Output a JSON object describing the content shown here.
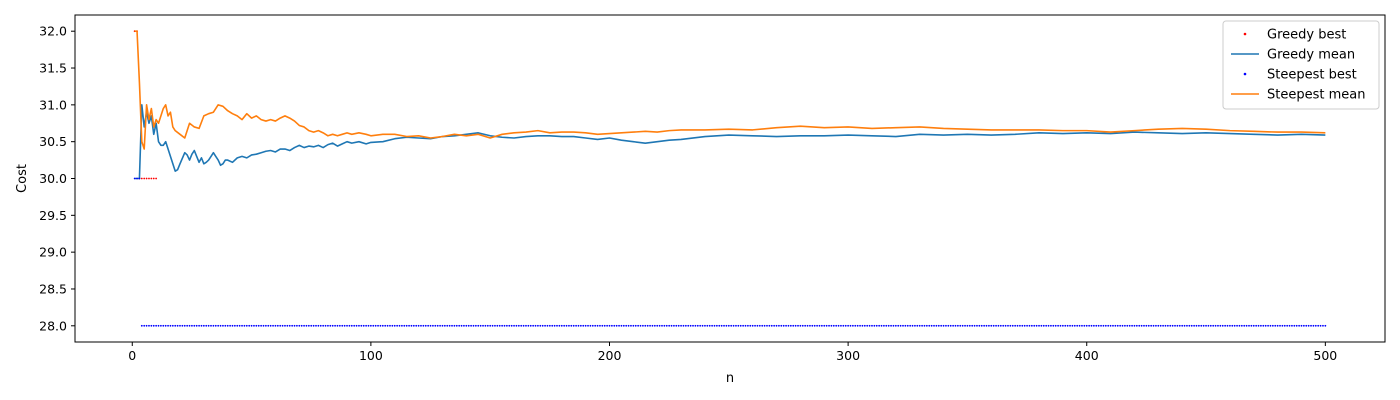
{
  "chart_data": {
    "type": "line",
    "title": "",
    "xlabel": "n",
    "ylabel": "Cost",
    "xlim": [
      -24,
      525
    ],
    "ylim": [
      27.78,
      32.22
    ],
    "xticks": [
      0,
      100,
      200,
      300,
      400,
      500
    ],
    "yticks": [
      28.0,
      28.5,
      29.0,
      29.5,
      30.0,
      30.5,
      31.0,
      31.5,
      32.0
    ],
    "ytick_labels": [
      "28.0",
      "28.5",
      "29.0",
      "29.5",
      "30.0",
      "30.5",
      "31.0",
      "31.5",
      "32.0"
    ],
    "legend_position": "top-right",
    "grid": false,
    "series": [
      {
        "name": "Greedy best",
        "style": "points",
        "color": "#ff0000",
        "x": [
          1,
          2,
          3,
          4,
          5,
          6,
          7,
          8,
          9,
          10
        ],
        "y": [
          32.0,
          32.0,
          30.0,
          30.0,
          30.0,
          30.0,
          30.0,
          30.0,
          30.0,
          30.0
        ]
      },
      {
        "name": "Greedy mean",
        "style": "line",
        "color": "#1f77b4",
        "x": [
          1,
          2,
          3,
          4,
          5,
          6,
          7,
          8,
          9,
          10,
          11,
          12,
          13,
          14,
          15,
          17,
          18,
          19,
          20,
          22,
          23,
          24,
          25,
          26,
          27,
          28,
          29,
          30,
          31,
          32,
          33,
          34,
          35,
          36,
          37,
          38,
          39,
          40,
          42,
          44,
          46,
          48,
          50,
          52,
          54,
          56,
          58,
          60,
          62,
          64,
          66,
          68,
          70,
          72,
          74,
          76,
          78,
          80,
          82,
          84,
          86,
          88,
          90,
          92,
          95,
          98,
          100,
          105,
          110,
          115,
          120,
          125,
          130,
          135,
          140,
          145,
          150,
          155,
          160,
          165,
          170,
          175,
          180,
          185,
          190,
          195,
          200,
          205,
          210,
          215,
          220,
          225,
          230,
          240,
          250,
          260,
          270,
          280,
          290,
          300,
          310,
          320,
          330,
          340,
          350,
          360,
          370,
          380,
          390,
          400,
          410,
          420,
          430,
          440,
          450,
          460,
          470,
          480,
          490,
          500
        ],
        "y": [
          30.0,
          30.0,
          30.0,
          31.0,
          30.7,
          30.9,
          30.75,
          30.85,
          30.6,
          30.75,
          30.5,
          30.45,
          30.45,
          30.5,
          30.4,
          30.2,
          30.1,
          30.12,
          30.2,
          30.35,
          30.32,
          30.25,
          30.33,
          30.38,
          30.3,
          30.22,
          30.28,
          30.2,
          30.22,
          30.25,
          30.3,
          30.35,
          30.3,
          30.25,
          30.18,
          30.2,
          30.25,
          30.25,
          30.22,
          30.28,
          30.3,
          30.28,
          30.32,
          30.33,
          30.35,
          30.37,
          30.38,
          30.36,
          30.4,
          30.4,
          30.38,
          30.42,
          30.45,
          30.42,
          30.44,
          30.43,
          30.45,
          30.42,
          30.46,
          30.48,
          30.44,
          30.47,
          30.5,
          30.48,
          30.5,
          30.47,
          30.49,
          30.5,
          30.54,
          30.56,
          30.55,
          30.54,
          30.57,
          30.58,
          30.6,
          30.62,
          30.58,
          30.56,
          30.55,
          30.57,
          30.58,
          30.58,
          30.57,
          30.57,
          30.55,
          30.53,
          30.55,
          30.52,
          30.5,
          30.48,
          30.5,
          30.52,
          30.53,
          30.57,
          30.59,
          30.58,
          30.57,
          30.58,
          30.58,
          30.59,
          30.58,
          30.57,
          30.6,
          30.59,
          30.6,
          30.59,
          30.6,
          30.62,
          30.61,
          30.62,
          30.61,
          30.63,
          30.62,
          30.61,
          30.62,
          30.61,
          30.6,
          30.59,
          30.6,
          30.59
        ]
      },
      {
        "name": "Steepest best",
        "style": "points",
        "color": "#0000ff",
        "x_range": [
          1,
          500
        ],
        "y_values_by_x": [
          {
            "x_from": 1,
            "x_to": 3,
            "y": 30.0
          },
          {
            "x_from": 4,
            "x_to": 500,
            "y": 28.0
          }
        ]
      },
      {
        "name": "Steepest mean",
        "style": "line",
        "color": "#ff7f0e",
        "x": [
          1,
          2,
          3,
          4,
          5,
          6,
          7,
          8,
          9,
          10,
          11,
          12,
          13,
          14,
          15,
          16,
          17,
          18,
          20,
          22,
          24,
          26,
          28,
          30,
          32,
          34,
          36,
          38,
          40,
          42,
          44,
          46,
          48,
          50,
          52,
          54,
          56,
          58,
          60,
          62,
          64,
          66,
          68,
          70,
          72,
          74,
          76,
          78,
          80,
          82,
          84,
          86,
          88,
          90,
          92,
          95,
          98,
          100,
          105,
          110,
          115,
          120,
          125,
          130,
          135,
          140,
          145,
          150,
          155,
          160,
          165,
          170,
          175,
          180,
          185,
          190,
          195,
          200,
          205,
          210,
          215,
          220,
          225,
          230,
          240,
          250,
          260,
          270,
          280,
          290,
          300,
          310,
          320,
          330,
          340,
          350,
          360,
          370,
          380,
          390,
          400,
          410,
          420,
          430,
          440,
          450,
          460,
          470,
          480,
          490,
          500
        ],
        "y": [
          32.0,
          32.0,
          31.3,
          30.5,
          30.4,
          31.0,
          30.8,
          30.95,
          30.7,
          30.8,
          30.75,
          30.85,
          30.95,
          31.0,
          30.85,
          30.9,
          30.7,
          30.65,
          30.6,
          30.55,
          30.75,
          30.7,
          30.68,
          30.85,
          30.88,
          30.9,
          31.0,
          30.98,
          30.92,
          30.88,
          30.85,
          30.8,
          30.88,
          30.82,
          30.85,
          30.8,
          30.78,
          30.8,
          30.78,
          30.82,
          30.85,
          30.82,
          30.78,
          30.72,
          30.7,
          30.65,
          30.63,
          30.65,
          30.62,
          30.58,
          30.6,
          30.58,
          30.6,
          30.62,
          30.6,
          30.62,
          30.6,
          30.58,
          30.6,
          30.6,
          30.57,
          30.58,
          30.55,
          30.57,
          30.6,
          30.58,
          30.6,
          30.55,
          30.6,
          30.62,
          30.63,
          30.65,
          30.62,
          30.63,
          30.63,
          30.62,
          30.6,
          30.61,
          30.62,
          30.63,
          30.64,
          30.63,
          30.65,
          30.66,
          30.66,
          30.67,
          30.66,
          30.69,
          30.71,
          30.69,
          30.7,
          30.68,
          30.69,
          30.7,
          30.68,
          30.67,
          30.66,
          30.66,
          30.66,
          30.65,
          30.65,
          30.63,
          30.65,
          30.67,
          30.68,
          30.67,
          30.65,
          30.64,
          30.63,
          30.63,
          30.62
        ]
      }
    ]
  }
}
